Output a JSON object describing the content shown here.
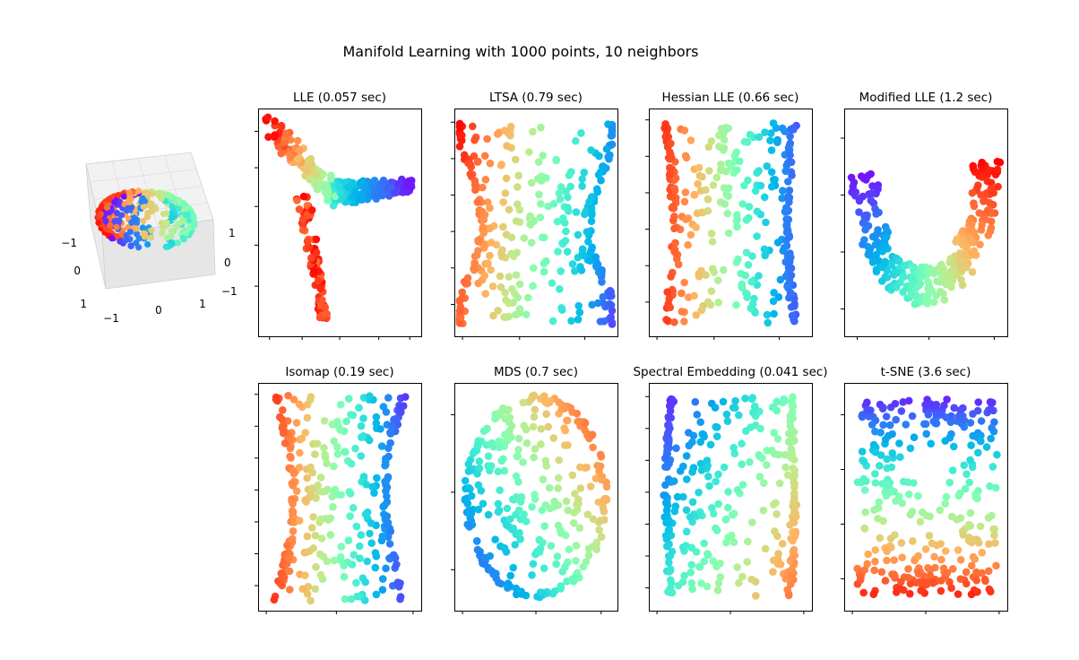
{
  "chart_data": {
    "title": "Manifold Learning with 1000 points, 10 neighbors",
    "type": "scatter",
    "colormap": "rainbow",
    "colormap_stops": [
      "#8000ff",
      "#4062fa",
      "#00b5eb",
      "#40ecd4",
      "#80ffb4",
      "#c0eb8d",
      "#ffb360",
      "#ff6230",
      "#ff0000"
    ],
    "sphere_3d": {
      "name": "severed sphere (3D input)",
      "x_ticks": [
        "−1",
        "0",
        "1"
      ],
      "y_ticks": [
        "−1",
        "0",
        "1"
      ],
      "z_ticks": [
        "−1",
        "0",
        "1"
      ]
    },
    "panels": [
      {
        "id": "lle",
        "title": "LLE (0.057 sec)",
        "method": "LLE",
        "time_sec": 0.057,
        "shape": "lle"
      },
      {
        "id": "ltsa",
        "title": "LTSA (0.79 sec)",
        "method": "LTSA",
        "time_sec": 0.79,
        "shape": "ltsa"
      },
      {
        "id": "hessian",
        "title": "Hessian LLE (0.66 sec)",
        "method": "Hessian LLE",
        "time_sec": 0.66,
        "shape": "hessian"
      },
      {
        "id": "modified",
        "title": "Modified LLE (1.2 sec)",
        "method": "Modified LLE",
        "time_sec": 1.2,
        "shape": "modified"
      },
      {
        "id": "isomap",
        "title": "Isomap (0.19 sec)",
        "method": "Isomap",
        "time_sec": 0.19,
        "shape": "isomap"
      },
      {
        "id": "mds",
        "title": "MDS (0.7 sec)",
        "method": "MDS",
        "time_sec": 0.7,
        "shape": "mds"
      },
      {
        "id": "spectral",
        "title": "Spectral Embedding (0.041 sec)",
        "method": "Spectral Embedding",
        "time_sec": 0.041,
        "shape": "spectral"
      },
      {
        "id": "tsne",
        "title": "t-SNE (3.6 sec)",
        "method": "t-SNE",
        "time_sec": 3.6,
        "shape": "tsne"
      }
    ]
  }
}
